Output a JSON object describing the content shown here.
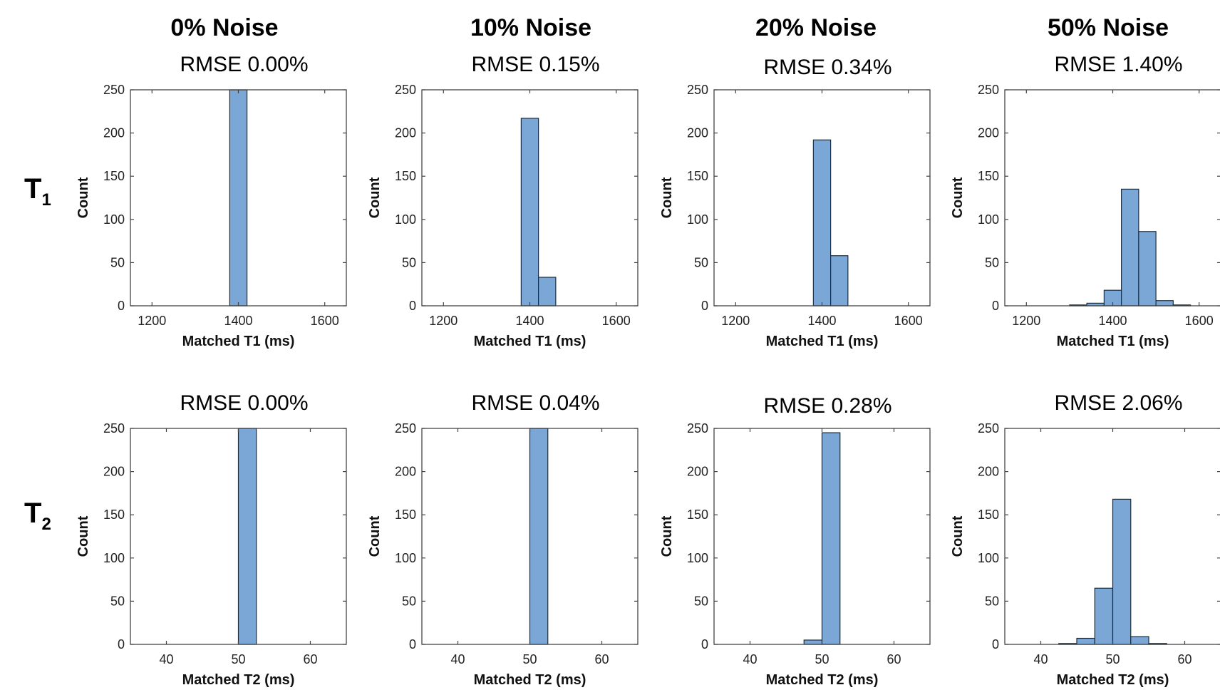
{
  "columns": [
    "0% Noise",
    "10% Noise",
    "20% Noise",
    "50% Noise"
  ],
  "rows": [
    {
      "label": "T",
      "subscript": "1"
    },
    {
      "label": "T",
      "subscript": "2"
    }
  ],
  "chart_data": [
    {
      "type": "bar",
      "row": 0,
      "col": 0,
      "title": "RMSE 0.00%",
      "xlabel": "Matched T1 (ms)",
      "ylabel": "Count",
      "xlim": [
        1150,
        1650
      ],
      "ylim": [
        0,
        250
      ],
      "xticks": [
        1200,
        1400,
        1600
      ],
      "yticks": [
        0,
        50,
        100,
        150,
        200,
        250
      ],
      "bin_width": 40,
      "bins": [
        [
          1380,
          250
        ]
      ]
    },
    {
      "type": "bar",
      "row": 0,
      "col": 1,
      "title": "RMSE 0.15%",
      "xlabel": "Matched T1 (ms)",
      "ylabel": "Count",
      "xlim": [
        1150,
        1650
      ],
      "ylim": [
        0,
        250
      ],
      "xticks": [
        1200,
        1400,
        1600
      ],
      "yticks": [
        0,
        50,
        100,
        150,
        200,
        250
      ],
      "bin_width": 40,
      "bins": [
        [
          1380,
          217
        ],
        [
          1420,
          33
        ]
      ]
    },
    {
      "type": "bar",
      "row": 0,
      "col": 2,
      "title": "RMSE 0.34%",
      "xlabel": "Matched T1 (ms)",
      "ylabel": "Count",
      "xlim": [
        1150,
        1650
      ],
      "ylim": [
        0,
        250
      ],
      "xticks": [
        1200,
        1400,
        1600
      ],
      "yticks": [
        0,
        50,
        100,
        150,
        200,
        250
      ],
      "bin_width": 40,
      "bins": [
        [
          1380,
          192
        ],
        [
          1420,
          58
        ]
      ]
    },
    {
      "type": "bar",
      "row": 0,
      "col": 3,
      "title": "RMSE 1.40%",
      "xlabel": "Matched T1 (ms)",
      "ylabel": "Count",
      "xlim": [
        1150,
        1650
      ],
      "ylim": [
        0,
        250
      ],
      "xticks": [
        1200,
        1400,
        1600
      ],
      "yticks": [
        0,
        50,
        100,
        150,
        200,
        250
      ],
      "bin_width": 40,
      "bins": [
        [
          1300,
          1
        ],
        [
          1340,
          3
        ],
        [
          1380,
          18
        ],
        [
          1420,
          135
        ],
        [
          1460,
          86
        ],
        [
          1500,
          6
        ],
        [
          1540,
          1
        ]
      ]
    },
    {
      "type": "bar",
      "row": 1,
      "col": 0,
      "title": "RMSE 0.00%",
      "xlabel": "Matched T2 (ms)",
      "ylabel": "Count",
      "xlim": [
        35,
        65
      ],
      "ylim": [
        0,
        250
      ],
      "xticks": [
        40,
        50,
        60
      ],
      "yticks": [
        0,
        50,
        100,
        150,
        200,
        250
      ],
      "bin_width": 2.5,
      "bins": [
        [
          50,
          250
        ]
      ]
    },
    {
      "type": "bar",
      "row": 1,
      "col": 1,
      "title": "RMSE 0.04%",
      "xlabel": "Matched T2 (ms)",
      "ylabel": "Count",
      "xlim": [
        35,
        65
      ],
      "ylim": [
        0,
        250
      ],
      "xticks": [
        40,
        50,
        60
      ],
      "yticks": [
        0,
        50,
        100,
        150,
        200,
        250
      ],
      "bin_width": 2.5,
      "bins": [
        [
          50,
          250
        ]
      ]
    },
    {
      "type": "bar",
      "row": 1,
      "col": 2,
      "title": "RMSE 0.28%",
      "xlabel": "Matched T2 (ms)",
      "ylabel": "Count",
      "xlim": [
        35,
        65
      ],
      "ylim": [
        0,
        250
      ],
      "xticks": [
        40,
        50,
        60
      ],
      "yticks": [
        0,
        50,
        100,
        150,
        200,
        250
      ],
      "bin_width": 2.5,
      "bins": [
        [
          47.5,
          5
        ],
        [
          50,
          245
        ]
      ]
    },
    {
      "type": "bar",
      "row": 1,
      "col": 3,
      "title": "RMSE 2.06%",
      "xlabel": "Matched T2 (ms)",
      "ylabel": "Count",
      "xlim": [
        35,
        65
      ],
      "ylim": [
        0,
        250
      ],
      "xticks": [
        40,
        50,
        60
      ],
      "yticks": [
        0,
        50,
        100,
        150,
        200,
        250
      ],
      "bin_width": 2.5,
      "bins": [
        [
          42.5,
          1
        ],
        [
          45,
          7
        ],
        [
          47.5,
          65
        ],
        [
          50,
          168
        ],
        [
          52.5,
          9
        ],
        [
          55,
          1
        ]
      ]
    }
  ]
}
